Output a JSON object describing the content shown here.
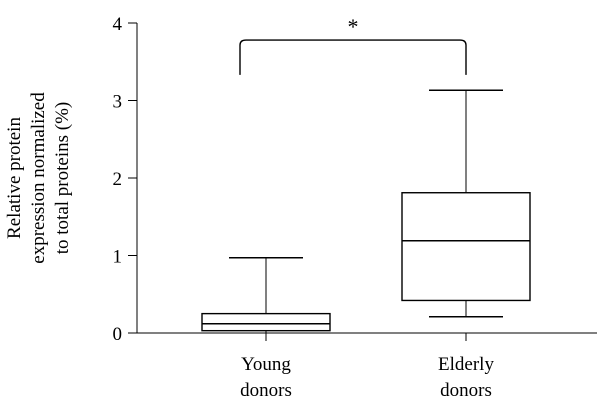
{
  "chart_data": {
    "type": "box",
    "ylabel_lines": [
      "Relative protein",
      "expression normalized",
      "to total proteins (%)"
    ],
    "ylim": [
      0,
      4
    ],
    "yticks": [
      0,
      1,
      2,
      3,
      4
    ],
    "categories": [
      [
        "Young",
        "donors"
      ],
      [
        "Elderly",
        "donors"
      ]
    ],
    "boxes": [
      {
        "whisker_low": 0.0,
        "q1": 0.03,
        "median": 0.12,
        "q3": 0.25,
        "whisker_high": 0.97
      },
      {
        "whisker_low": 0.21,
        "q1": 0.42,
        "median": 1.19,
        "q3": 1.81,
        "whisker_high": 3.13
      }
    ],
    "annotation": {
      "text": "*",
      "bracket_y": 3.78,
      "drop_to": 3.33
    },
    "grid": false,
    "legend": "none"
  }
}
